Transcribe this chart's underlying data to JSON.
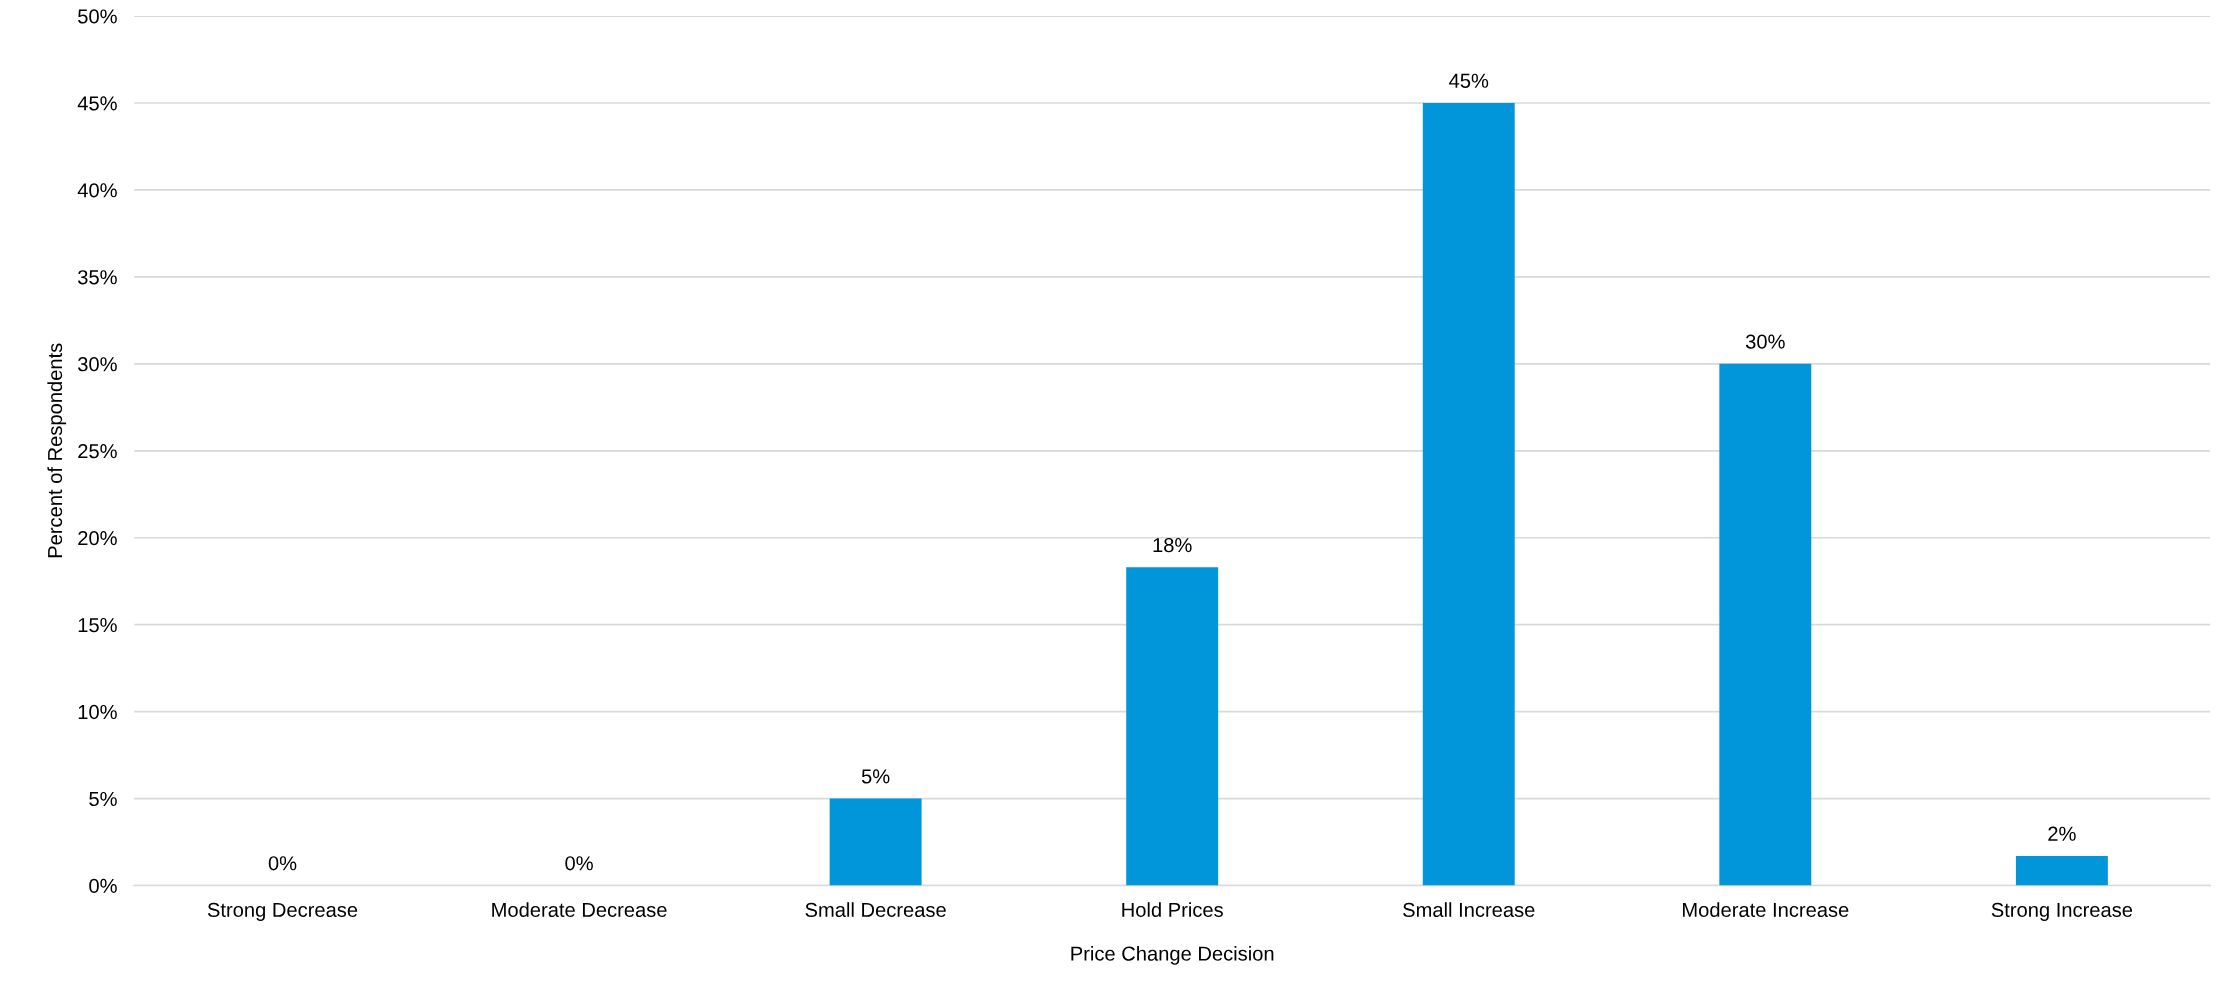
{
  "chart_data": {
    "type": "bar",
    "xlabel": "Price Change Decision",
    "ylabel": "Percent of Respondents",
    "categories": [
      "Strong Decrease",
      "Moderate Decrease",
      "Small Decrease",
      "Hold Prices",
      "Small Increase",
      "Moderate Increase",
      "Strong Increase"
    ],
    "values": [
      0,
      0,
      5,
      18.3,
      45,
      30,
      1.7
    ],
    "value_labels": [
      "0%",
      "0%",
      "5%",
      "18%",
      "45%",
      "30%",
      "2%"
    ],
    "color": "#0096d9",
    "ylim": [
      0,
      50
    ],
    "yticks": [
      {
        "value": 0,
        "label": "0%"
      },
      {
        "value": 5,
        "label": "5%"
      },
      {
        "value": 10,
        "label": "10%"
      },
      {
        "value": 15,
        "label": "15%"
      },
      {
        "value": 20,
        "label": "20%"
      },
      {
        "value": 25,
        "label": "25%"
      },
      {
        "value": 30,
        "label": "30%"
      },
      {
        "value": 35,
        "label": "35%"
      },
      {
        "value": 40,
        "label": "40%"
      },
      {
        "value": 45,
        "label": "45%"
      },
      {
        "value": 50,
        "label": "50%"
      }
    ],
    "grid": "y",
    "legend": false
  }
}
